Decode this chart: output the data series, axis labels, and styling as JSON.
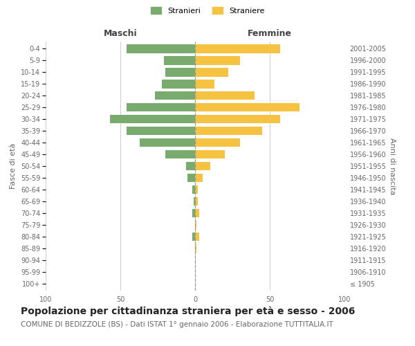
{
  "age_groups": [
    "100+",
    "95-99",
    "90-94",
    "85-89",
    "80-84",
    "75-79",
    "70-74",
    "65-69",
    "60-64",
    "55-59",
    "50-54",
    "45-49",
    "40-44",
    "35-39",
    "30-34",
    "25-29",
    "20-24",
    "15-19",
    "10-14",
    "5-9",
    "0-4"
  ],
  "birth_years": [
    "≤ 1905",
    "1906-1910",
    "1911-1915",
    "1916-1920",
    "1921-1925",
    "1926-1930",
    "1931-1935",
    "1936-1940",
    "1941-1945",
    "1946-1950",
    "1951-1955",
    "1956-1960",
    "1961-1965",
    "1966-1970",
    "1971-1975",
    "1976-1980",
    "1981-1985",
    "1986-1990",
    "1991-1995",
    "1996-2000",
    "2001-2005"
  ],
  "males": [
    0,
    0,
    0,
    0,
    2,
    0,
    2,
    1,
    2,
    5,
    6,
    20,
    37,
    46,
    57,
    46,
    27,
    22,
    20,
    21,
    46
  ],
  "females": [
    0,
    0,
    0,
    1,
    3,
    1,
    3,
    2,
    2,
    5,
    10,
    20,
    30,
    45,
    57,
    70,
    40,
    13,
    22,
    30,
    57
  ],
  "male_color": "#7aab6e",
  "female_color": "#f5c242",
  "background_color": "#ffffff",
  "grid_color": "#cccccc",
  "title": "Popolazione per cittadinanza straniera per età e sesso - 2006",
  "subtitle": "COMUNE DI BEDIZZOLE (BS) - Dati ISTAT 1° gennaio 2006 - Elaborazione TUTTITALIA.IT",
  "left_header": "Maschi",
  "right_header": "Femmine",
  "left_label": "Fasce di età",
  "right_label": "Anni di nascita",
  "legend_male": "Stranieri",
  "legend_female": "Straniere",
  "xlim": 100,
  "title_fontsize": 10,
  "subtitle_fontsize": 7.5,
  "tick_fontsize": 7,
  "label_fontsize": 8
}
